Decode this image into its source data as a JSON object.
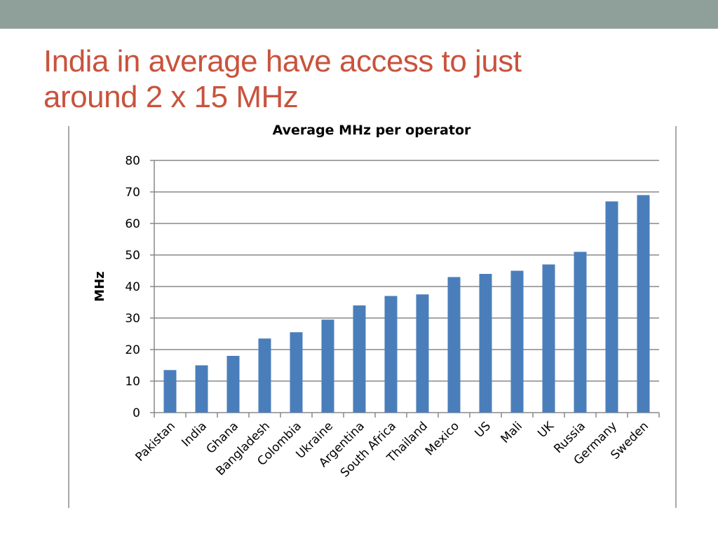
{
  "slide": {
    "title_line1": "India in average have access to just",
    "title_line2": "around 2 x 15 MHz"
  },
  "colors": {
    "accent_bar": "#8f9f99",
    "title": "#c9533d",
    "bars": "#4a7ebb"
  },
  "chart_data": {
    "type": "bar",
    "title": "Average MHz per operator",
    "xlabel": "",
    "ylabel": "MHz",
    "ylim": [
      0,
      80
    ],
    "yticks": [
      0,
      10,
      20,
      30,
      40,
      50,
      60,
      70,
      80
    ],
    "grid": true,
    "legend": "none",
    "categories": [
      "Pakistan",
      "India",
      "Ghana",
      "Bangladesh",
      "Colombia",
      "Ukraine",
      "Argentina",
      "South Africa",
      "Thailand",
      "Mexico",
      "US",
      "Mali",
      "UK",
      "Russia",
      "Germany",
      "Sweden"
    ],
    "values": [
      13.5,
      15,
      18,
      23.5,
      25.5,
      29.5,
      34,
      37,
      37.5,
      43,
      44,
      45,
      47,
      51,
      67,
      69
    ]
  }
}
